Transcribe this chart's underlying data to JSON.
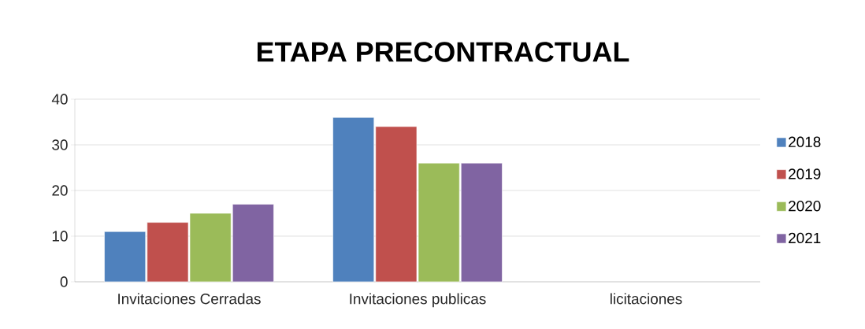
{
  "chart_data": {
    "type": "bar",
    "title": "ETAPA  PRECONTRACTUAL",
    "categories": [
      "Invitaciones Cerradas",
      "Invitaciones publicas",
      "licitaciones"
    ],
    "series": [
      {
        "name": "2018",
        "color": "#4f81bd",
        "values": [
          11,
          36,
          null
        ]
      },
      {
        "name": "2019",
        "color": "#c0504d",
        "values": [
          13,
          34,
          null
        ]
      },
      {
        "name": "2020",
        "color": "#9bbb59",
        "values": [
          15,
          26,
          null
        ]
      },
      {
        "name": "2021",
        "color": "#8064a2",
        "values": [
          17,
          26,
          null
        ]
      }
    ],
    "ylim": [
      0,
      40
    ],
    "yticks": [
      0,
      10,
      20,
      30,
      40
    ],
    "grid": "y",
    "legend": "right"
  }
}
